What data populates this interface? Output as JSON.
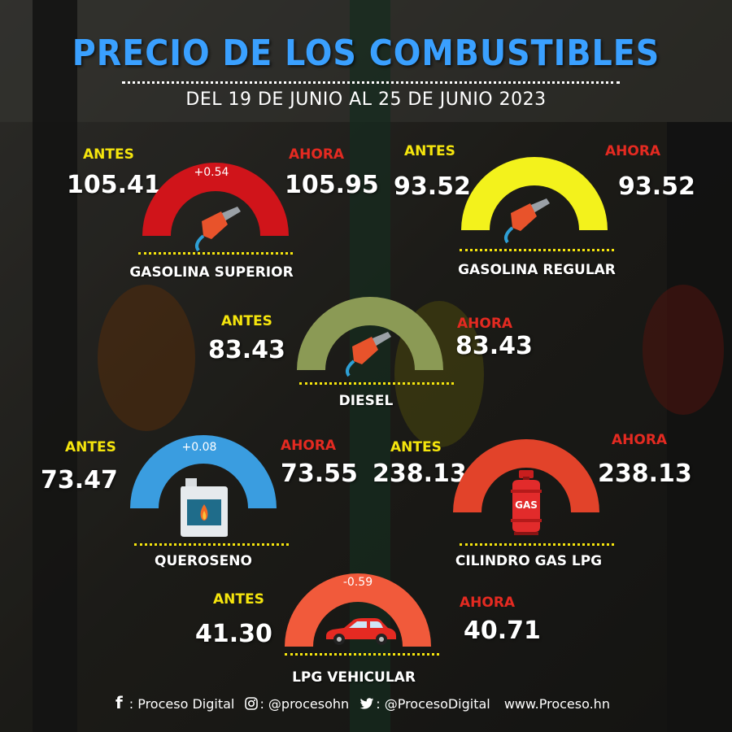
{
  "header": {
    "title": "PRECIO DE LOS COMBUSTIBLES",
    "subtitle": "DEL  19 DE JUNIO AL 25 DE JUNIO 2023"
  },
  "labels": {
    "antes": "ANTES",
    "ahora": "AHORA"
  },
  "fuels": [
    {
      "name": "GASOLINA SUPERIOR",
      "antes": "105.41",
      "ahora": "105.95",
      "change": "+0.54",
      "color": "#d0141a",
      "icon": "fuel-nozzle-icon"
    },
    {
      "name": "GASOLINA REGULAR",
      "antes": "93.52",
      "ahora": "93.52",
      "change": "",
      "color": "#f3f21c",
      "icon": "fuel-nozzle-icon"
    },
    {
      "name": "DIESEL",
      "antes": "83.43",
      "ahora": "83.43",
      "change": "",
      "color": "#8b9a55",
      "icon": "fuel-nozzle-icon"
    },
    {
      "name": "QUEROSENO",
      "antes": "73.47",
      "ahora": "73.55",
      "change": "+0.08",
      "color": "#3a9de0",
      "icon": "kerosene-jerrycan-icon"
    },
    {
      "name": "CILINDRO GAS LPG",
      "antes": "238.13",
      "ahora": "238.13",
      "change": "",
      "color": "#e2432a",
      "icon": "gas-cylinder-icon"
    },
    {
      "name": "LPG VEHICULAR",
      "antes": "41.30",
      "ahora": "40.71",
      "change": "-0.59",
      "color": "#f15a3b",
      "icon": "car-icon"
    }
  ],
  "gas_cylinder_text": "GAS",
  "footer": {
    "facebook": ": Proceso Digital",
    "instagram": ": @procesohn",
    "twitter": ": @ProcesoDigital",
    "website": "www.Proceso.hn"
  },
  "colors": {
    "title": "#3aa0ff",
    "antes": "#f5e50d",
    "ahora": "#e42a21"
  }
}
